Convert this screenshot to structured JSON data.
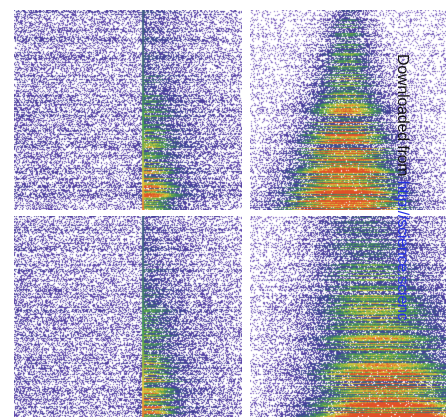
{
  "watermark": {
    "prefix": "Downloaded from ",
    "link": "http://science.scienc"
  },
  "panels": [
    {
      "id": "panel-a",
      "name": "top-left-heatmap",
      "pattern": "line-left"
    },
    {
      "id": "panel-b",
      "name": "top-right-heatmap",
      "pattern": "cone-hot"
    },
    {
      "id": "panel-c",
      "name": "bottom-left-heatmap",
      "pattern": "line-left"
    },
    {
      "id": "panel-d",
      "name": "bottom-right-heatmap",
      "pattern": "diffuse-right"
    }
  ],
  "colors": {
    "background": "#ffffff",
    "low": "#6a4fb8",
    "mid": "#3f4aa8",
    "green": "#4fae4a",
    "yellow": "#e8d23a",
    "red": "#e0502a"
  }
}
